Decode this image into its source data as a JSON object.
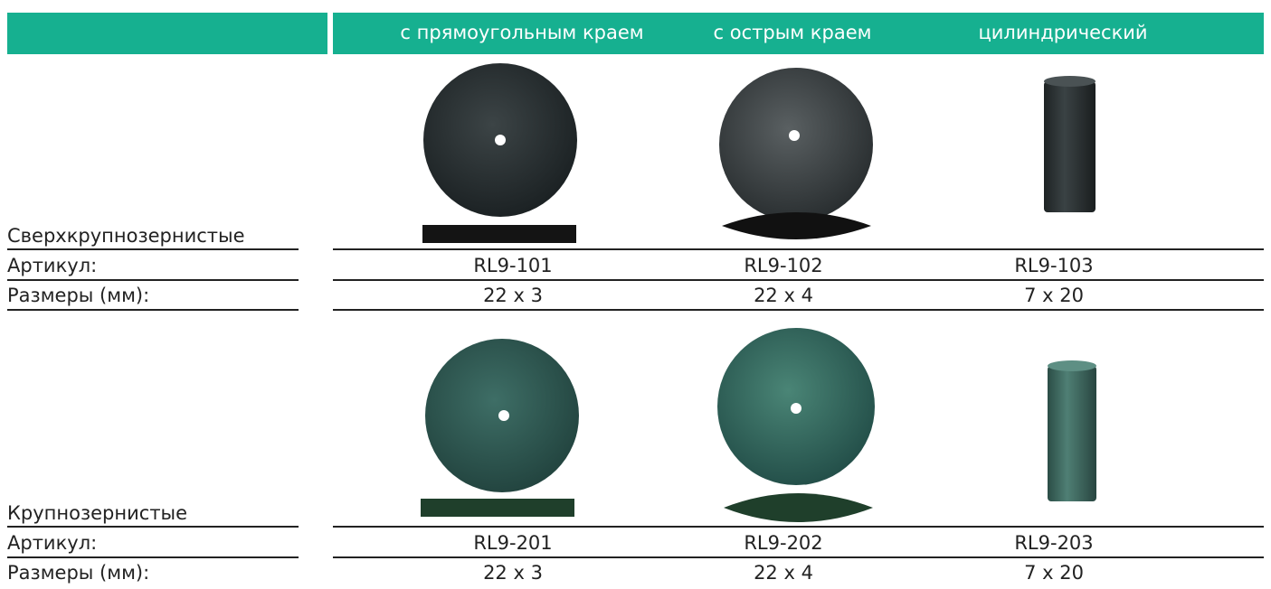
{
  "header": {
    "columns": [
      "с прямоугольным краем",
      "с острым краем",
      "цилиндрический"
    ]
  },
  "groups": [
    {
      "name": "Сверхкрупнозернистые",
      "article_label": "Артикул:",
      "size_label": "Размеры (мм):",
      "articles": [
        "RL9-101",
        "RL9-102",
        "RL9-103"
      ],
      "sizes": [
        "22 x 3",
        "22 x 4",
        "7 x 20"
      ]
    },
    {
      "name": "Крупнозернистые",
      "article_label": "Артикул:",
      "size_label": "Размеры (мм):",
      "articles": [
        "RL9-201",
        "RL9-202",
        "RL9-203"
      ],
      "sizes": [
        "22 x 3",
        "22 x 4",
        "7 x 20"
      ]
    }
  ]
}
